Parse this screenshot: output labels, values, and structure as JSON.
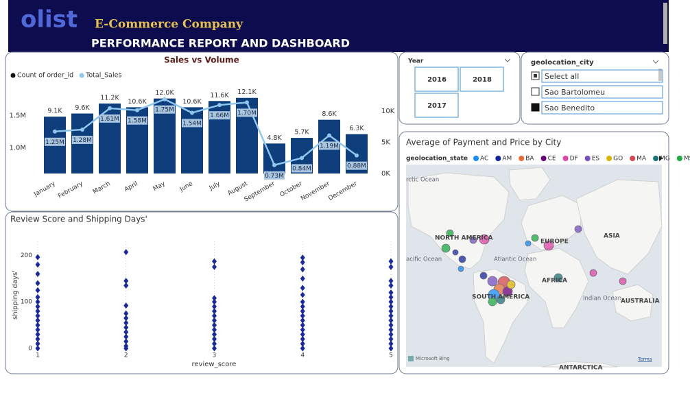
{
  "header": {
    "logo": "olist",
    "company": "E-Commerce Company",
    "title": "PERFORMANCE REPORT AND DASHBOARD"
  },
  "slicers": {
    "year": {
      "title": "Year",
      "options": [
        "2016",
        "2018",
        "2017"
      ]
    },
    "city": {
      "title": "geolocation_city",
      "options": [
        "Select all",
        "Sao Bartolomeu",
        "Sao Benedito"
      ]
    }
  },
  "map": {
    "title": "Average of Payment and Price by City",
    "legend_title": "geolocation_state",
    "legend": [
      {
        "name": "AC",
        "color": "#118dff"
      },
      {
        "name": "AM",
        "color": "#12239e"
      },
      {
        "name": "BA",
        "color": "#e66c37"
      },
      {
        "name": "CE",
        "color": "#6b007b"
      },
      {
        "name": "DF",
        "color": "#e044a7"
      },
      {
        "name": "ES",
        "color": "#744ec2"
      },
      {
        "name": "GO",
        "color": "#d9b300"
      },
      {
        "name": "MA",
        "color": "#d64550"
      },
      {
        "name": "MG",
        "color": "#197278"
      },
      {
        "name": "MS",
        "color": "#1aab40"
      }
    ],
    "labels": [
      "rctic Ocean",
      "NORTH AMERICA",
      "EUROPE",
      "ASIA",
      "Atlantic Ocean",
      "acific Ocean",
      "AFRICA",
      "SOUTH AMERICA",
      "Indian Ocean",
      "AUSTRALIA",
      "ANTARCTICA"
    ],
    "credit": "Microsoft Bing",
    "terms": "Terms"
  },
  "chart_data": [
    {
      "type": "bar",
      "title": "Sales vs Volume",
      "categories": [
        "January",
        "February",
        "March",
        "April",
        "May",
        "June",
        "July",
        "August",
        "September",
        "October",
        "November",
        "December"
      ],
      "series": [
        {
          "name": "Count of order_id",
          "type": "bar",
          "axis": "y2",
          "color": "#0e3f7c",
          "values": [
            9100,
            9600,
            11200,
            10600,
            12000,
            10600,
            11600,
            12100,
            4800,
            5700,
            8600,
            6300
          ],
          "value_labels": [
            "9.1K",
            "9.6K",
            "11.2K",
            "10.6K",
            "12.0K",
            "10.6K",
            "11.6K",
            "12.1K",
            "4.8K",
            "5.7K",
            "8.6K",
            "6.3K"
          ]
        },
        {
          "name": "Total_Sales",
          "type": "line",
          "color": "#8fc8ee",
          "values": [
            1250000,
            1280000,
            1610000,
            1580000,
            1750000,
            1540000,
            1660000,
            1700000,
            730000,
            840000,
            1190000,
            880000
          ],
          "value_labels": [
            "1.25M",
            "1.28M",
            "1.61M",
            "1.58M",
            "1.75M",
            "1.54M",
            "1.66M",
            "1.70M",
            "0.73M",
            "0.84M",
            "1.19M",
            "0.88M"
          ]
        }
      ],
      "ylim": [
        600000,
        1800000
      ],
      "yticks": [
        {
          "value": 1000000,
          "label": "1.0M"
        },
        {
          "value": 1500000,
          "label": "1.5M"
        }
      ],
      "y2lim": [
        0,
        12400
      ],
      "y2ticks": [
        {
          "value": 0,
          "label": "0K"
        },
        {
          "value": 5000,
          "label": "5K"
        },
        {
          "value": 10000,
          "label": "10K"
        }
      ],
      "grid": false
    },
    {
      "type": "scatter",
      "title": "Review Score and Shipping Days'",
      "x_label": "review_score",
      "y_label": "shipping days'",
      "x": [
        1,
        1,
        1,
        1,
        1,
        1,
        1,
        1,
        1,
        1,
        1,
        1,
        1,
        1,
        1,
        1,
        1,
        2,
        2,
        2,
        2,
        2,
        2,
        2,
        2,
        2,
        2,
        2,
        2,
        2,
        3,
        3,
        3,
        3,
        3,
        3,
        3,
        3,
        3,
        3,
        3,
        3,
        3,
        3,
        4,
        4,
        4,
        4,
        4,
        4,
        4,
        4,
        4,
        4,
        4,
        4,
        4,
        4,
        4,
        4,
        4,
        5,
        5,
        5,
        5,
        5,
        5,
        5,
        5,
        5,
        5,
        5,
        5,
        5,
        5,
        5,
        5,
        5
      ],
      "values": [
        196,
        180,
        160,
        140,
        125,
        110,
        100,
        90,
        80,
        70,
        60,
        50,
        40,
        30,
        20,
        10,
        0,
        207,
        145,
        135,
        92,
        75,
        65,
        55,
        45,
        35,
        25,
        15,
        5,
        0,
        187,
        175,
        108,
        100,
        90,
        80,
        70,
        60,
        50,
        40,
        30,
        20,
        10,
        0,
        195,
        185,
        170,
        150,
        130,
        115,
        100,
        90,
        80,
        70,
        60,
        50,
        40,
        30,
        20,
        10,
        0,
        187,
        175,
        145,
        135,
        120,
        110,
        100,
        90,
        80,
        70,
        60,
        50,
        40,
        30,
        20,
        10,
        0
      ],
      "color": "#1a2a9c",
      "xlim": [
        1,
        5
      ],
      "xticks": [
        1,
        2,
        3,
        4,
        5
      ],
      "ylim": [
        0,
        230
      ],
      "yticks": [
        0,
        100,
        200
      ],
      "grid": true
    }
  ]
}
